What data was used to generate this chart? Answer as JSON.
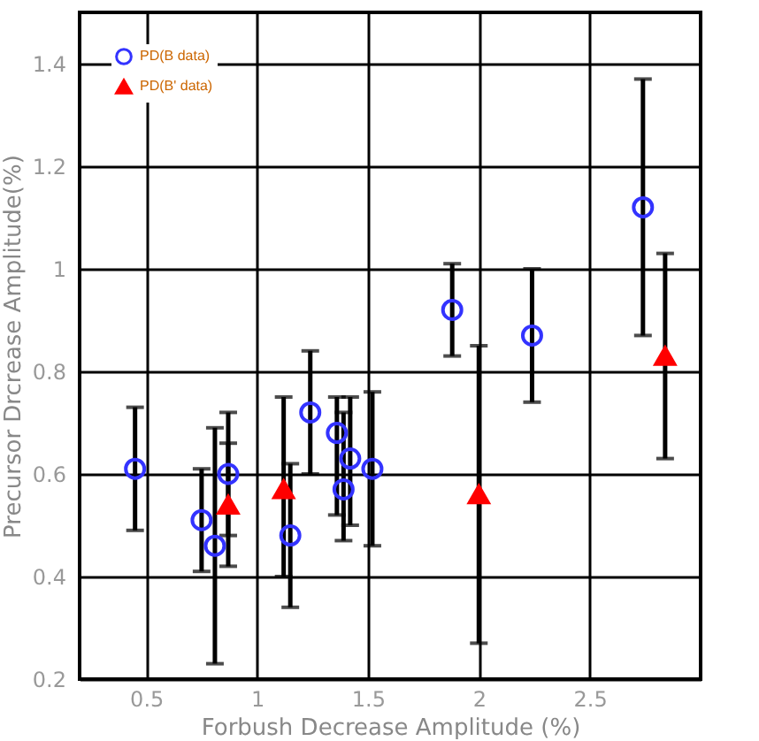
{
  "chart_data": {
    "type": "scatter",
    "xlabel": "Forbush Decrease Amplitude (%)",
    "ylabel": "Precursor Drcrease Amplitude(%)",
    "xlim": [
      0.2,
      3.0
    ],
    "xticks": [
      0.5,
      1,
      1.5,
      2,
      2.5
    ],
    "ylim": [
      0.2,
      1.5
    ],
    "yticks": [
      0.2,
      0.4,
      0.6,
      0.8,
      1,
      1.2,
      1.4
    ],
    "grid": true,
    "legend": "top left",
    "series": [
      {
        "name": "PD(B data)",
        "color": "#3333ff",
        "marker": "circle",
        "x": [
          0.45,
          0.75,
          0.81,
          0.87,
          1.15,
          1.24,
          1.36,
          1.39,
          1.42,
          1.52,
          1.88,
          2.24,
          2.74
        ],
        "values": [
          0.61,
          0.51,
          0.46,
          0.6,
          0.48,
          0.72,
          0.68,
          0.57,
          0.63,
          0.61,
          0.92,
          0.87,
          1.12
        ],
        "errors": [
          [
            0.49,
            0.73
          ],
          [
            0.41,
            0.61
          ],
          [
            0.23,
            0.69
          ],
          [
            0.42,
            0.72
          ],
          [
            0.34,
            0.62
          ],
          [
            0.6,
            0.84
          ],
          [
            0.52,
            0.75
          ],
          [
            0.47,
            0.72
          ],
          [
            0.5,
            0.75
          ],
          [
            0.46,
            0.76
          ],
          [
            0.83,
            1.01
          ],
          [
            0.74,
            1.0
          ],
          [
            0.87,
            1.37
          ]
        ]
      },
      {
        "name": "PD(B' data)",
        "color": "#ff0000",
        "marker": "triangle",
        "x": [
          0.87,
          1.12,
          2.0,
          2.84
        ],
        "values": [
          0.54,
          0.57,
          0.56,
          0.83
        ],
        "errors": [
          [
            0.48,
            0.66
          ],
          [
            0.4,
            0.75
          ],
          [
            0.27,
            0.85
          ],
          [
            0.63,
            1.03
          ]
        ]
      }
    ]
  }
}
